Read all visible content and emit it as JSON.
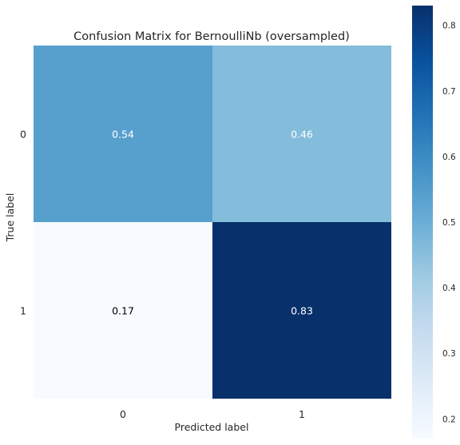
{
  "chart_data": {
    "type": "heatmap",
    "title": "Confusion Matrix for BernoulliNb (oversampled)",
    "xlabel": "Predicted label",
    "ylabel": "True label",
    "x_categories": [
      "0",
      "1"
    ],
    "y_categories": [
      "0",
      "1"
    ],
    "values": [
      [
        0.54,
        0.46
      ],
      [
        0.17,
        0.83
      ]
    ],
    "value_labels": [
      [
        "0.54",
        "0.46"
      ],
      [
        "0.17",
        "0.83"
      ]
    ],
    "colormap": "Blues",
    "colorbar": {
      "range": [
        0.17,
        0.83
      ],
      "ticks": [
        0.2,
        0.3,
        0.4,
        0.5,
        0.6,
        0.7,
        0.8
      ],
      "tick_labels": [
        "0.2",
        "0.3",
        "0.4",
        "0.5",
        "0.6",
        "0.7",
        "0.8"
      ]
    },
    "grid": false
  }
}
